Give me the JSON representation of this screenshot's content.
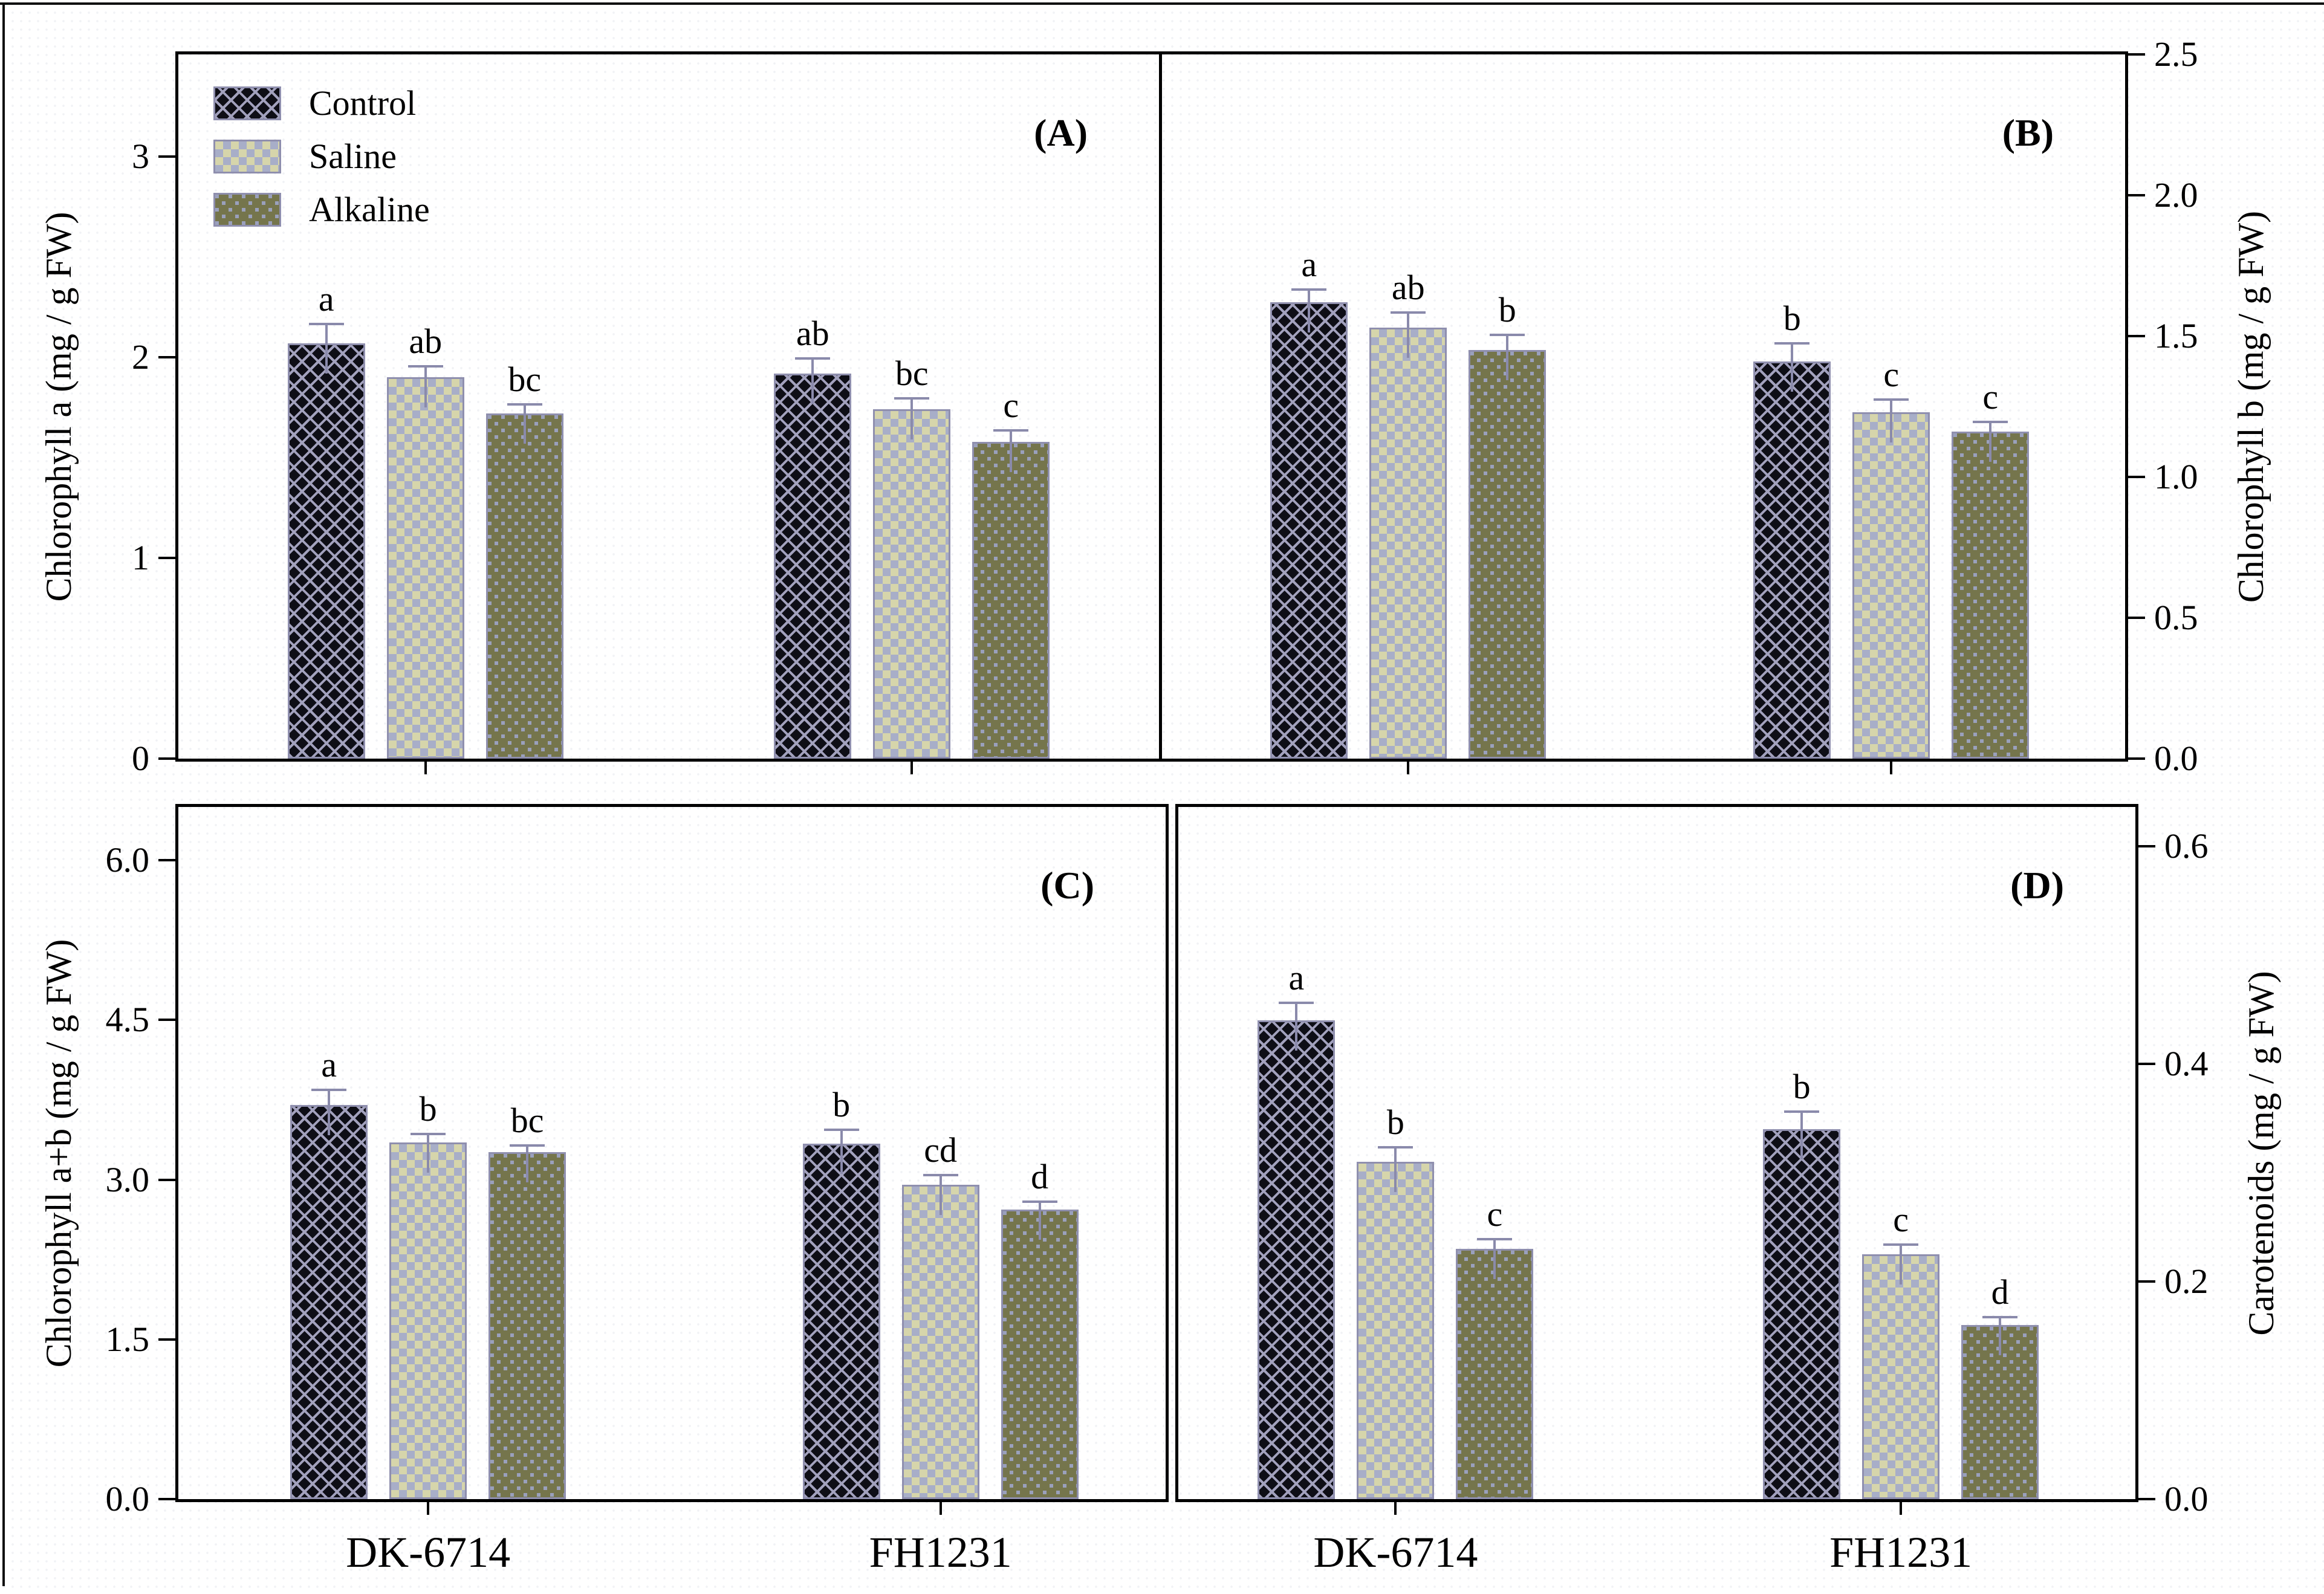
{
  "figure": {
    "description": "Four-panel bar chart of pigment contents in two maize hybrids under Control, Saline and Alkaline treatments"
  },
  "x_categories": [
    "DK-6714",
    "FH1231"
  ],
  "legend": {
    "position": "top-left of panel A",
    "items": [
      {
        "label": "Control",
        "swatch": "control-diamond-hatch"
      },
      {
        "label": "Saline",
        "swatch": "saline-checkerboard"
      },
      {
        "label": "Alkaline",
        "swatch": "alkaline-dotted-olive"
      }
    ]
  },
  "colors": {
    "frame": "#000000",
    "text": "#000000",
    "bar_border": "#8f8fae",
    "error_bar": "#8a8aab",
    "control_fill": "#0e0e16",
    "control_lattice": "#a2a1bd",
    "saline_blue": "#a8aec8",
    "saline_tan": "#d6d5ab",
    "alkaline_olive": "#75754c",
    "alkaline_square": "#9aa0bc"
  },
  "chart_data": [
    {
      "id": "A",
      "type": "bar",
      "panel_label": "(A)",
      "ylabel": "Chlorophyll a (mg / g FW)",
      "axis_side": "left",
      "ylim": [
        0,
        3.51
      ],
      "yticks": [
        0,
        1,
        2,
        3
      ],
      "ytick_labels": [
        "0",
        "1",
        "2",
        "3"
      ],
      "grid": false,
      "show_x_labels": false,
      "categories": [
        "DK-6714",
        "FH1231"
      ],
      "group_center_fracs": [
        0.252,
        0.748
      ],
      "series": [
        {
          "name": "Control",
          "values": [
            2.07,
            1.92
          ],
          "errors": [
            0.09,
            0.07
          ],
          "letters": [
            "a",
            "ab"
          ]
        },
        {
          "name": "Saline",
          "values": [
            1.9,
            1.74
          ],
          "errors": [
            0.05,
            0.05
          ],
          "letters": [
            "ab",
            "bc"
          ]
        },
        {
          "name": "Alkaline",
          "values": [
            1.72,
            1.58
          ],
          "errors": [
            0.04,
            0.05
          ],
          "letters": [
            "bc",
            "c"
          ]
        }
      ]
    },
    {
      "id": "B",
      "type": "bar",
      "panel_label": "(B)",
      "ylabel": "Chlorophyll b (mg / g FW)",
      "axis_side": "right",
      "ylim": [
        0,
        2.5
      ],
      "yticks": [
        0,
        0.5,
        1.0,
        1.5,
        2.0,
        2.5
      ],
      "ytick_labels": [
        "0.0",
        "0.5",
        "1.0",
        "1.5",
        "2.0",
        "2.5"
      ],
      "grid": false,
      "show_x_labels": false,
      "categories": [
        "DK-6714",
        "FH1231"
      ],
      "group_center_fracs": [
        0.258,
        0.758
      ],
      "series": [
        {
          "name": "Control",
          "values": [
            1.62,
            1.41
          ],
          "errors": [
            0.04,
            0.06
          ],
          "letters": [
            "a",
            "b"
          ]
        },
        {
          "name": "Saline",
          "values": [
            1.53,
            1.23
          ],
          "errors": [
            0.05,
            0.04
          ],
          "letters": [
            "ab",
            "c"
          ]
        },
        {
          "name": "Alkaline",
          "values": [
            1.45,
            1.16
          ],
          "errors": [
            0.05,
            0.03
          ],
          "letters": [
            "b",
            "c"
          ]
        }
      ]
    },
    {
      "id": "C",
      "type": "bar",
      "panel_label": "(C)",
      "ylabel": "Chlorophyll a+b (mg / g FW)",
      "axis_side": "left",
      "ylim": [
        0,
        6.5
      ],
      "yticks": [
        0,
        1.5,
        3.0,
        4.5,
        6.0
      ],
      "ytick_labels": [
        "0.0",
        "1.5",
        "3.0",
        "4.5",
        "6.0"
      ],
      "grid": false,
      "show_x_labels": true,
      "categories": [
        "DK-6714",
        "FH1231"
      ],
      "group_center_fracs": [
        0.253,
        0.772
      ],
      "series": [
        {
          "name": "Control",
          "values": [
            3.7,
            3.34
          ],
          "errors": [
            0.13,
            0.12
          ],
          "letters": [
            "a",
            "b"
          ]
        },
        {
          "name": "Saline",
          "values": [
            3.35,
            2.95
          ],
          "errors": [
            0.07,
            0.08
          ],
          "letters": [
            "b",
            "cd"
          ]
        },
        {
          "name": "Alkaline",
          "values": [
            3.26,
            2.72
          ],
          "errors": [
            0.05,
            0.06
          ],
          "letters": [
            "bc",
            "d"
          ]
        }
      ]
    },
    {
      "id": "D",
      "type": "bar",
      "panel_label": "(D)",
      "ylabel": "Carotenoids (mg / g FW)",
      "axis_side": "right",
      "ylim": [
        0,
        0.636
      ],
      "yticks": [
        0,
        0.2,
        0.4,
        0.6
      ],
      "ytick_labels": [
        "0.0",
        "0.2",
        "0.4",
        "0.6"
      ],
      "grid": false,
      "show_x_labels": true,
      "categories": [
        "DK-6714",
        "FH1231"
      ],
      "group_center_fracs": [
        0.227,
        0.755
      ],
      "series": [
        {
          "name": "Control",
          "values": [
            0.44,
            0.34
          ],
          "errors": [
            0.015,
            0.015
          ],
          "letters": [
            "a",
            "b"
          ]
        },
        {
          "name": "Saline",
          "values": [
            0.31,
            0.225
          ],
          "errors": [
            0.012,
            0.008
          ],
          "letters": [
            "b",
            "c"
          ]
        },
        {
          "name": "Alkaline",
          "values": [
            0.23,
            0.16
          ],
          "errors": [
            0.008,
            0.006
          ],
          "letters": [
            "c",
            "d"
          ]
        }
      ]
    }
  ]
}
